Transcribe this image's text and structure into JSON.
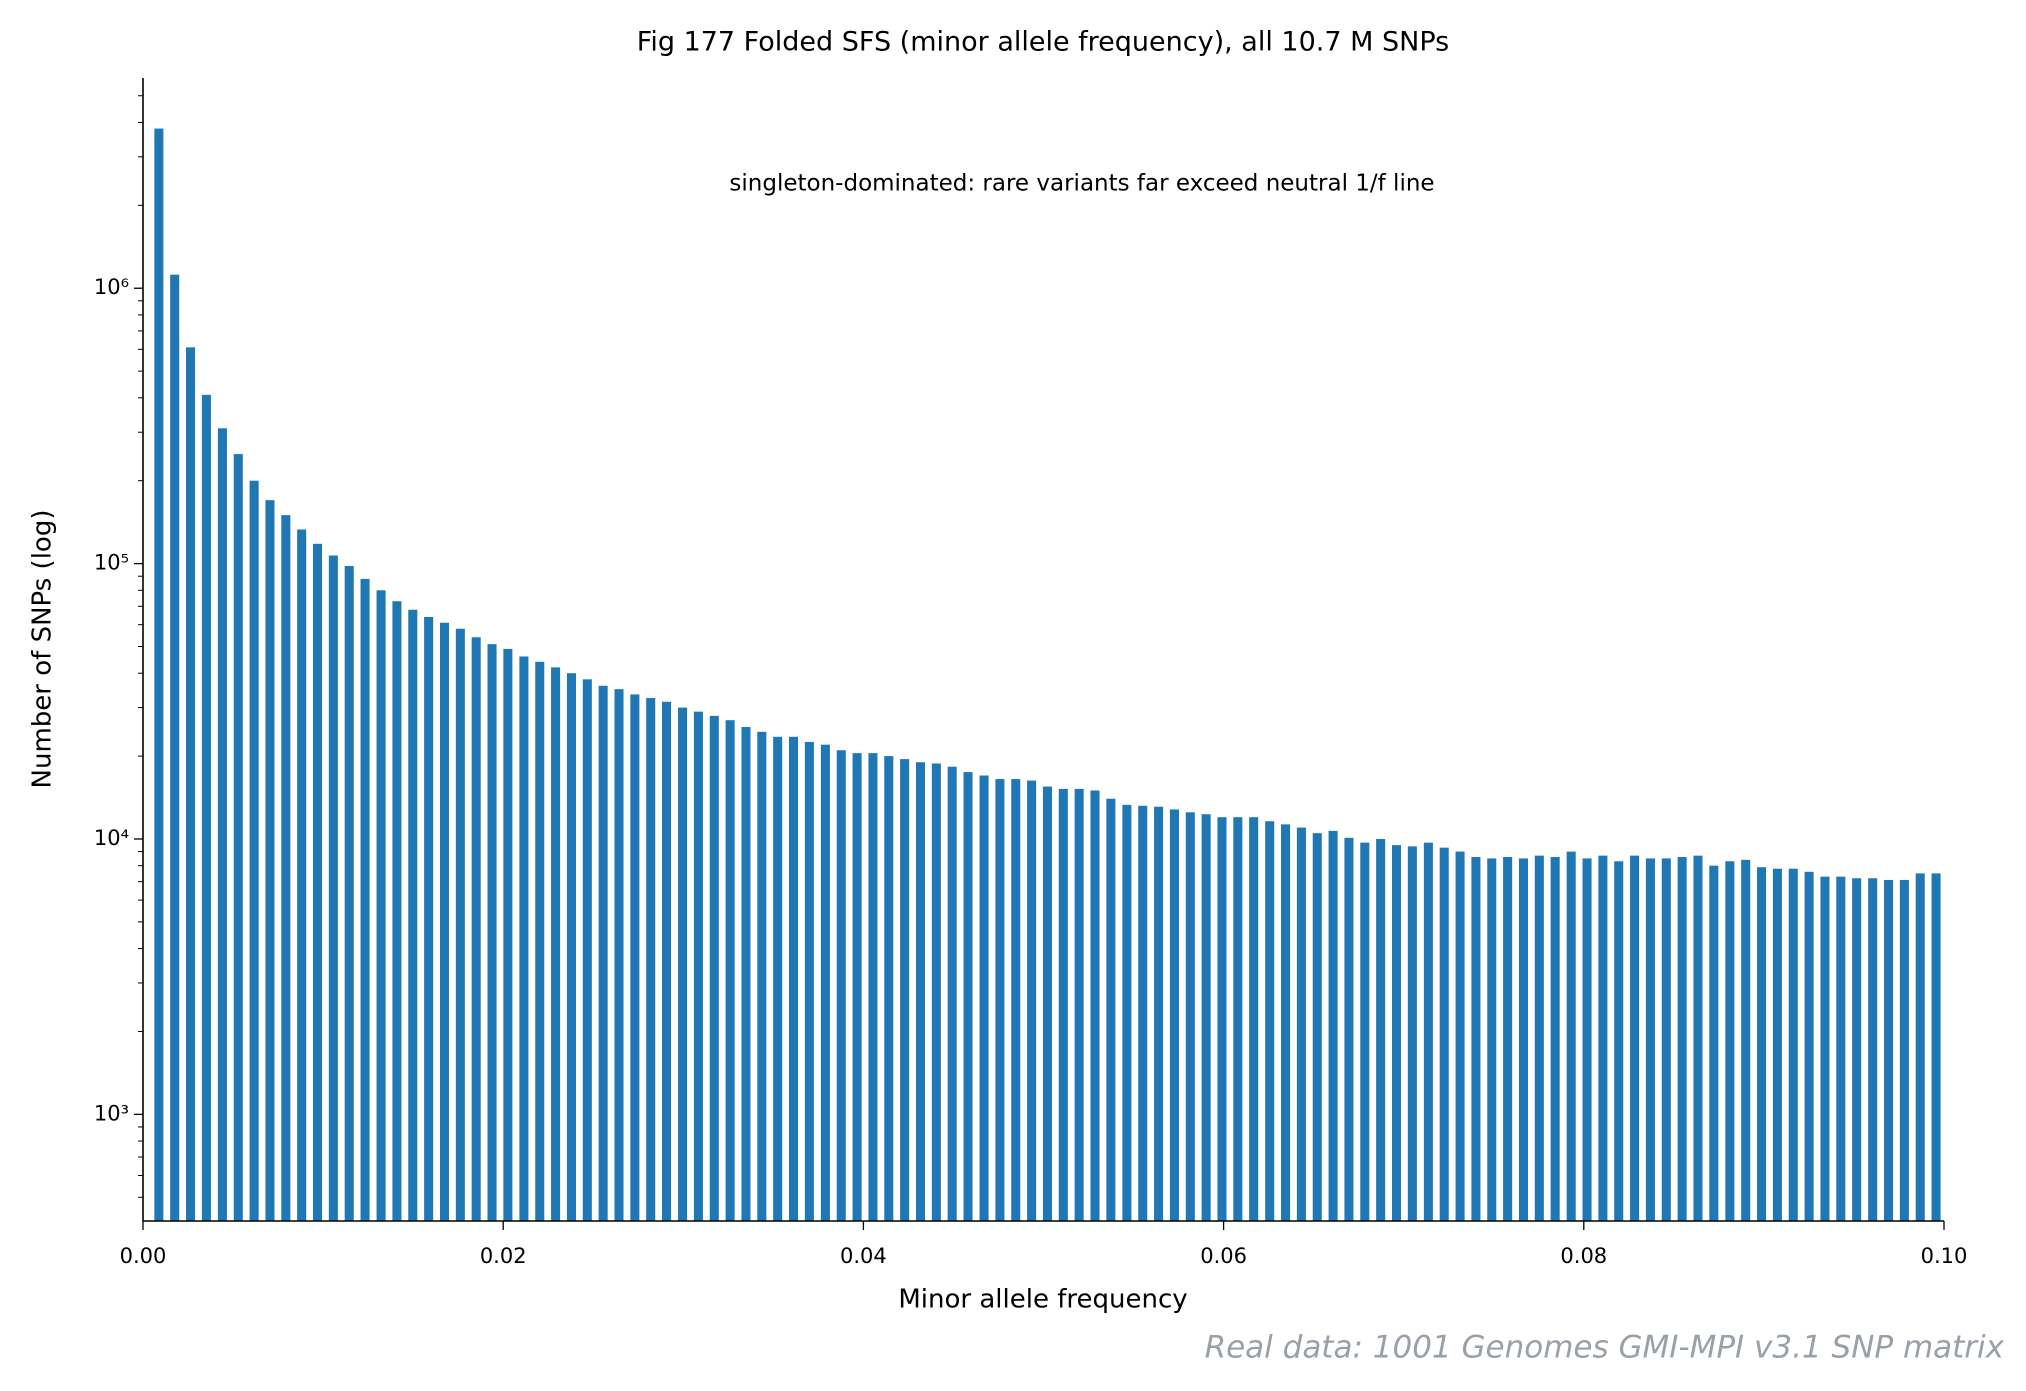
{
  "chart_data": {
    "type": "bar",
    "title": "Fig 177  Folded SFS (minor allele frequency), all 10.7 M SNPs",
    "annotation": "singleton-dominated: rare variants far exceed neutral 1/f line",
    "xlabel": "Minor allele frequency",
    "ylabel": "Number of SNPs (log)",
    "footnote": "Real data: 1001 Genomes GMI-MPI v3.1 SNP matrix",
    "color": "#1f77b4",
    "yscale": "log",
    "xlim": [
      0,
      0.1
    ],
    "xticks": [
      {
        "value": 0,
        "label": "0.00"
      },
      0.02,
      0.04,
      0.06,
      0.08,
      {
        "value": 0.1,
        "label": "0.10"
      }
    ],
    "ylim": [
      410,
      5800000
    ],
    "yticks": [
      {
        "value": 1000,
        "label": "10³"
      },
      {
        "value": 10000,
        "label": "10⁴"
      },
      {
        "value": 100000,
        "label": "10⁵"
      },
      {
        "value": 1000000,
        "label": "10⁶"
      }
    ],
    "x": [
      0.00088,
      0.00176,
      0.00264,
      0.00352,
      0.00441,
      0.00529,
      0.00617,
      0.00705,
      0.00793,
      0.00881,
      0.00969,
      0.01057,
      0.01145,
      0.01233,
      0.01322,
      0.0141,
      0.01498,
      0.01586,
      0.01674,
      0.01762,
      0.0185,
      0.01938,
      0.02026,
      0.02115,
      0.02203,
      0.02291,
      0.02379,
      0.02467,
      0.02555,
      0.02643,
      0.02731,
      0.02819,
      0.02907,
      0.02996,
      0.03084,
      0.03172,
      0.0326,
      0.03348,
      0.03436,
      0.03524,
      0.03612,
      0.037,
      0.03789,
      0.03877,
      0.03965,
      0.04053,
      0.04141,
      0.04229,
      0.04317,
      0.04405,
      0.04493,
      0.04581,
      0.0467,
      0.04758,
      0.04846,
      0.04934,
      0.05022,
      0.0511,
      0.05198,
      0.05286,
      0.05374,
      0.05463,
      0.05551,
      0.05639,
      0.05727,
      0.05815,
      0.05903,
      0.05991,
      0.06079,
      0.06167,
      0.06256,
      0.06344,
      0.06432,
      0.0652,
      0.06608,
      0.06696,
      0.06784,
      0.06872,
      0.0696,
      0.07048,
      0.07137,
      0.07225,
      0.07313,
      0.07401,
      0.07489,
      0.07577,
      0.07665,
      0.07753,
      0.07841,
      0.0793,
      0.08018,
      0.08106,
      0.08194,
      0.08282,
      0.0837,
      0.08458,
      0.08546,
      0.08634,
      0.08722,
      0.08811,
      0.08899,
      0.08987,
      0.09075,
      0.09163,
      0.09251,
      0.09339,
      0.09427,
      0.09515,
      0.09604,
      0.09692,
      0.0978,
      0.09868,
      0.09956
    ],
    "values": [
      3800000,
      1120000,
      610000,
      410000,
      310000,
      250000,
      200000,
      170000,
      150000,
      133000,
      118000,
      107000,
      98000,
      88000,
      80000,
      73000,
      68000,
      64000,
      61000,
      58000,
      54000,
      51000,
      49000,
      46000,
      44000,
      42000,
      40000,
      38000,
      36000,
      35000,
      33500,
      32500,
      31500,
      30000,
      29000,
      28000,
      27000,
      25500,
      24500,
      23500,
      23500,
      22500,
      22000,
      21000,
      20500,
      20500,
      20000,
      19500,
      19000,
      18800,
      18300,
      17500,
      17000,
      16500,
      16500,
      16300,
      15500,
      15200,
      15200,
      15000,
      14000,
      13300,
      13200,
      13100,
      12800,
      12500,
      12300,
      12000,
      12000,
      12000,
      11600,
      11300,
      11000,
      10500,
      10700,
      10100,
      9700,
      10000,
      9500,
      9400,
      9700,
      9300,
      9000,
      8600,
      8500,
      8600,
      8500,
      8700,
      8600,
      9000,
      8500,
      8700,
      8300,
      8700,
      8500,
      8500,
      8600,
      8700,
      8000,
      8300,
      8400,
      7900,
      7800,
      7800,
      7600,
      7300,
      7300,
      7200,
      7200,
      7100,
      7100,
      7500,
      7500
    ]
  }
}
